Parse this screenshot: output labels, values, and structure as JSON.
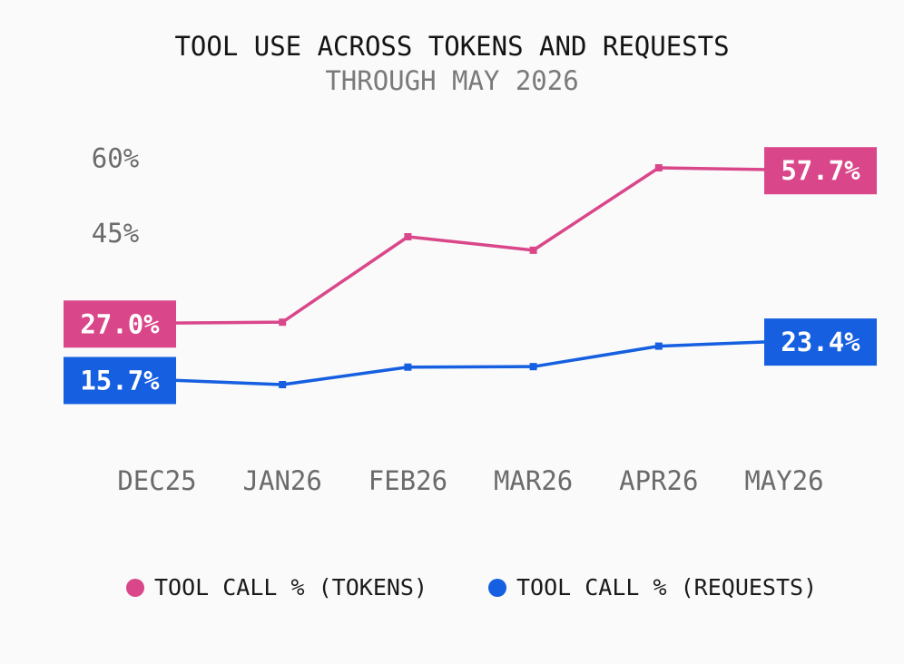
{
  "chart_data": {
    "type": "line",
    "title": "TOOL USE ACROSS TOKENS AND REQUESTS",
    "subtitle": "THROUGH MAY 2026",
    "categories": [
      "DEC25",
      "JAN26",
      "FEB26",
      "MAR26",
      "APR26",
      "MAY26"
    ],
    "yticks": [
      45,
      60
    ],
    "ytick_labels": [
      "45%",
      "60%"
    ],
    "ylim": [
      10,
      62
    ],
    "grid": false,
    "legend_position": "bottom",
    "series": [
      {
        "name": "TOOL CALL % (TOKENS)",
        "color": "#d9478a",
        "values": [
          27.0,
          27.2,
          44.3,
          41.6,
          58.1,
          57.7
        ],
        "start_label": "27.0%",
        "end_label": "57.7%"
      },
      {
        "name": "TOOL CALL % (REQUESTS)",
        "color": "#155fe0",
        "values": [
          15.7,
          14.7,
          18.2,
          18.3,
          22.4,
          23.4
        ],
        "start_label": "15.7%",
        "end_label": "23.4%"
      }
    ]
  }
}
